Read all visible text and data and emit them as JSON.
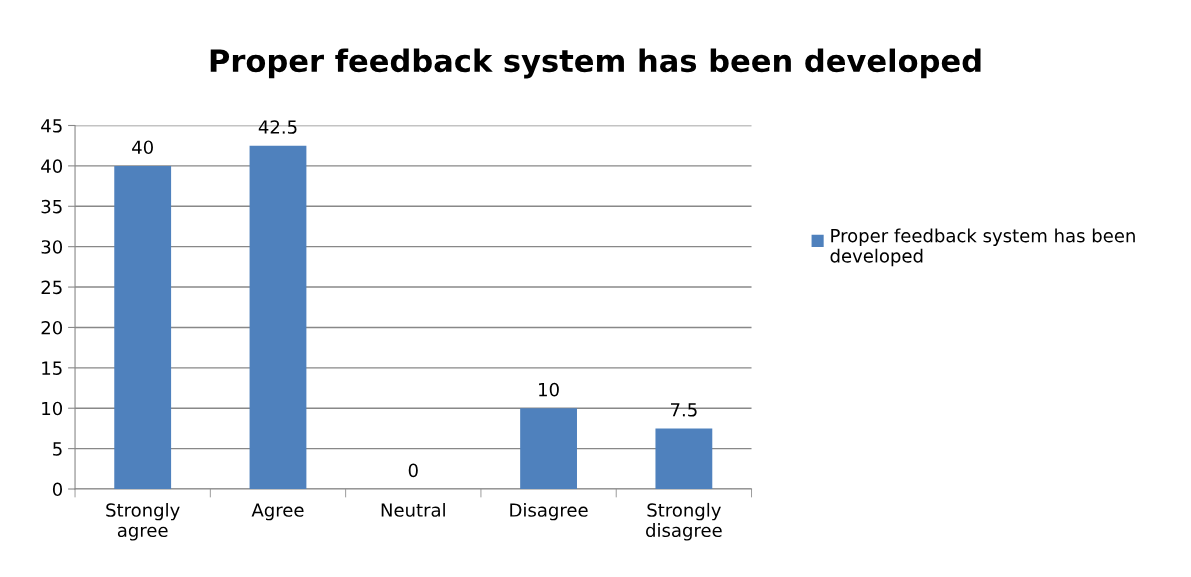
{
  "chart_data": {
    "type": "bar",
    "title": "Proper feedback system has been developed",
    "categories": [
      "Strongly\nagree",
      "Agree",
      "Neutral",
      "Disagree",
      "Strongly\ndisagree"
    ],
    "series": [
      {
        "name": "Proper feedback system has been developed",
        "color": "#4f81bd",
        "values": [
          40,
          42.5,
          0,
          10,
          7.5
        ]
      }
    ],
    "ylim": [
      0,
      45
    ],
    "yticks": [
      0,
      5,
      10,
      15,
      20,
      25,
      30,
      35,
      40,
      45
    ],
    "grid": "y",
    "legend": "right",
    "data_labels": true
  }
}
